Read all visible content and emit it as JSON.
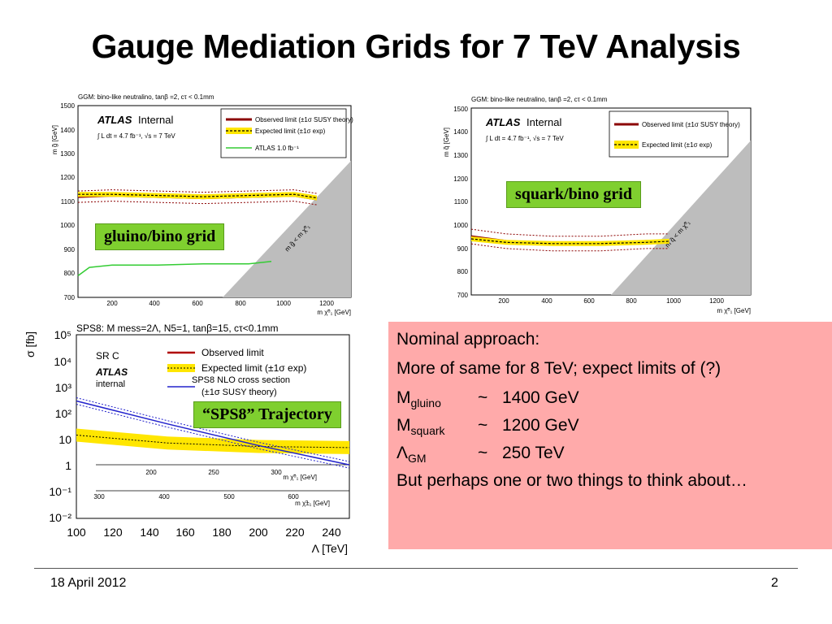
{
  "slide": {
    "title": "Gauge Mediation Grids for 7 TeV Analysis",
    "footer_date": "18 April 2012",
    "page_number": "2"
  },
  "labels": {
    "gluino_grid": "gluino/bino grid",
    "squark_grid": "squark/bino grid",
    "sps8": "“SPS8” Trajectory"
  },
  "nominal": {
    "heading": "Nominal approach:",
    "line2": "More of same for 8 TeV; expect limits of (?)",
    "items": [
      {
        "sym": "M",
        "sub": "gluino",
        "tilde": "~",
        "value": "1400 GeV"
      },
      {
        "sym": "M",
        "sub": "squark",
        "tilde": "~",
        "value": "1200 GeV"
      },
      {
        "sym": "Λ",
        "sub": "GM",
        "tilde": "~",
        "value": "250 TeV"
      }
    ],
    "closing": "But perhaps one or two things to think about…"
  },
  "plots": {
    "gluino": {
      "header": "GGM: bino-like neutralino, tanβ =2, cτ < 0.1mm",
      "atlas": "ATLAS",
      "internal": "Internal",
      "lumi": "∫ L dt = 4.7 fb⁻¹, √s = 7 TeV",
      "legend": [
        "Observed limit (±1σ SUSY theory)",
        "Expected limit (±1σ exp)",
        "ATLAS 1.0 fb⁻¹"
      ],
      "ylabel": "m g̃ [GeV]",
      "xlabel": "m χ̃⁰₁ [GeV]",
      "diag": "m g̃ < m χ̃⁰₁"
    },
    "squark": {
      "header": "GGM: bino-like neutralino, tanβ =2, cτ < 0.1mm",
      "atlas": "ATLAS",
      "internal": "Internal",
      "lumi": "∫ L dt = 4.7 fb⁻¹, √s = 7 TeV",
      "legend": [
        "Observed limit (±1σ SUSY theory)",
        "Expected limit (±1σ exp)"
      ],
      "ylabel": "m q̃ [GeV]",
      "xlabel": "m χ̃⁰₁ [GeV]",
      "diag": "m q̃ < m χ̃⁰₁"
    },
    "sps8": {
      "header": "SPS8: M mess=2Λ, N5=1, tanβ=15, cτ<0.1mm",
      "region": "SR C",
      "atlas": "ATLAS",
      "internal": "internal",
      "legend": [
        "Observed limit",
        "Expected limit (±1σ exp)",
        "SPS8 NLO cross section",
        "(±1σ SUSY theory)"
      ],
      "ylabel": "σ [fb]",
      "xlabel": "Λ [TeV]",
      "axis2": "m χ̃⁰₁ [GeV]",
      "axis3": "m χ̃±₁ [GeV]"
    }
  },
  "chart_data": [
    {
      "type": "line",
      "title": "GGM: bino-like neutralino, tanβ =2, cτ < 0.1mm",
      "xlabel": "m χ̃⁰₁ [GeV]",
      "ylabel": "m g̃ [GeV]",
      "xlim": [
        50,
        1250
      ],
      "ylim": [
        700,
        1500
      ],
      "xticks": [
        200,
        400,
        600,
        800,
        1000,
        1200
      ],
      "yticks": [
        700,
        800,
        900,
        1000,
        1100,
        1200,
        1300,
        1400,
        1500
      ],
      "series": [
        {
          "name": "Observed limit (±1σ SUSY theory)",
          "x": [
            50,
            200,
            400,
            600,
            800,
            1000,
            1100
          ],
          "y": [
            1120,
            1125,
            1120,
            1115,
            1120,
            1125,
            1110
          ]
        },
        {
          "name": "Expected limit (±1σ exp)",
          "x": [
            50,
            200,
            400,
            600,
            800,
            1000,
            1100
          ],
          "y": [
            1130,
            1130,
            1125,
            1120,
            1125,
            1130,
            1115
          ]
        },
        {
          "name": "ATLAS 1.0 fb⁻¹",
          "x": [
            50,
            100,
            200,
            400,
            600,
            800,
            900
          ],
          "y": [
            790,
            825,
            835,
            835,
            840,
            840,
            850
          ]
        }
      ]
    },
    {
      "type": "line",
      "title": "GGM: bino-like neutralino, tanβ =2, cτ < 0.1mm",
      "xlabel": "m χ̃⁰₁ [GeV]",
      "ylabel": "m q̃ [GeV]",
      "xlim": [
        50,
        1250
      ],
      "ylim": [
        700,
        1500
      ],
      "xticks": [
        200,
        400,
        600,
        800,
        1000,
        1200
      ],
      "yticks": [
        700,
        800,
        900,
        1000,
        1100,
        1200,
        1300,
        1400,
        1500
      ],
      "series": [
        {
          "name": "Observed limit (±1σ SUSY theory)",
          "x": [
            50,
            200,
            400,
            600,
            800,
            900
          ],
          "y": [
            950,
            930,
            920,
            920,
            930,
            930
          ]
        },
        {
          "name": "Expected limit (±1σ exp)",
          "x": [
            50,
            200,
            400,
            600,
            800,
            900
          ],
          "y": [
            940,
            925,
            920,
            920,
            925,
            930
          ]
        }
      ]
    },
    {
      "type": "line",
      "title": "SPS8: M mess=2Λ, N5=1, tanβ=15, cτ<0.1mm",
      "xlabel": "Λ [TeV]",
      "ylabel": "σ [fb]",
      "xlim": [
        100,
        250
      ],
      "ylim": [
        0.01,
        100000
      ],
      "yscale": "log",
      "xticks": [
        100,
        120,
        140,
        160,
        180,
        200,
        220,
        240
      ],
      "series": [
        {
          "name": "Observed limit",
          "x": [
            100,
            150,
            200,
            250
          ],
          "y": [
            15,
            7,
            5,
            5
          ]
        },
        {
          "name": "Expected limit (±1σ exp)",
          "x": [
            100,
            150,
            200,
            250
          ],
          "y": [
            15,
            7.5,
            5.5,
            5
          ]
        },
        {
          "name": "SPS8 NLO cross section",
          "x": [
            100,
            150,
            200,
            250
          ],
          "y": [
            300,
            40,
            6,
            1.1
          ]
        }
      ]
    }
  ]
}
